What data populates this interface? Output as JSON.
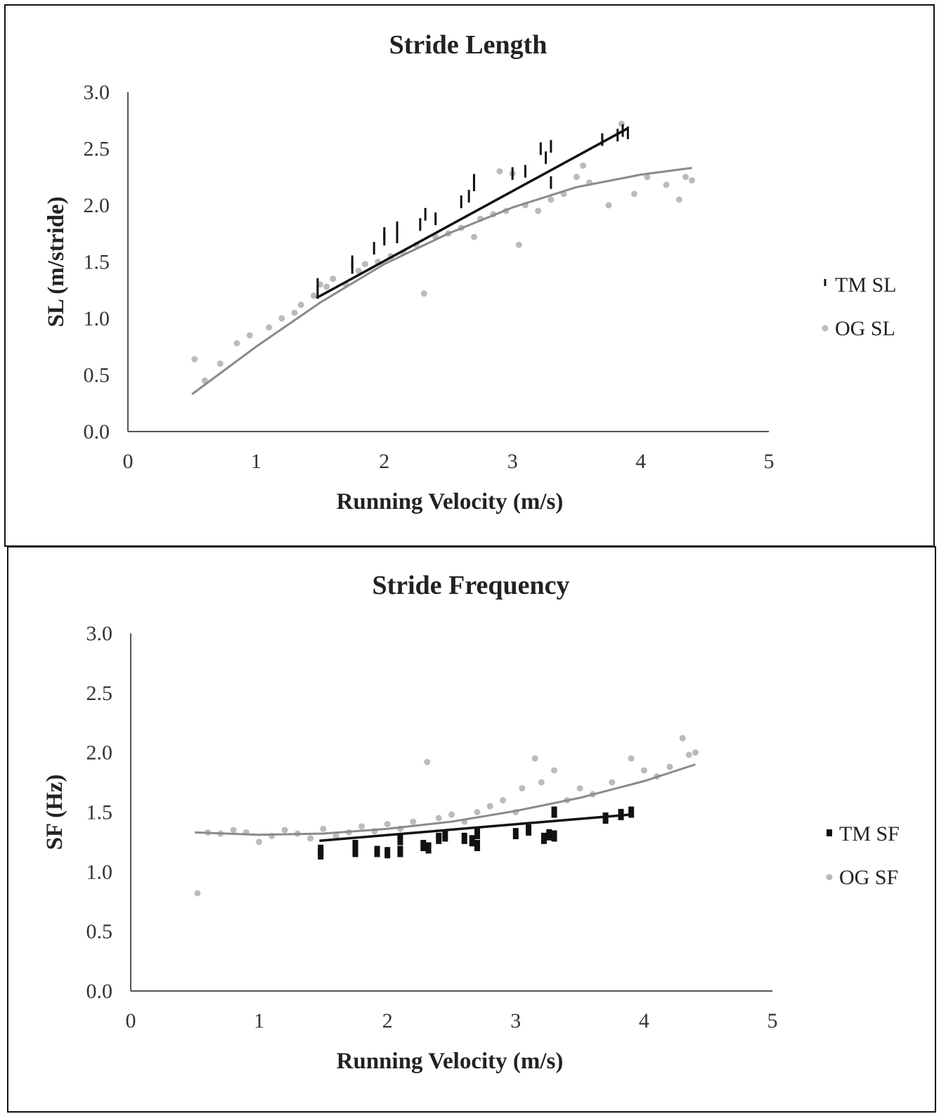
{
  "chart_data": [
    {
      "type": "scatter",
      "title": "Stride Length",
      "xlabel": "Running Velocity (m/s)",
      "ylabel": "SL (m/stride)",
      "xlim": [
        0,
        5
      ],
      "ylim": [
        0,
        3
      ],
      "x_ticks": [
        "0",
        "1",
        "2",
        "3",
        "4",
        "5"
      ],
      "y_ticks": [
        "0.0",
        "0.5",
        "1.0",
        "1.5",
        "2.0",
        "2.5",
        "3.0"
      ],
      "grid": false,
      "legend_position": "right",
      "series": [
        {
          "name": "TM SL",
          "color": "#111111",
          "marker": "dash",
          "points": [
            [
              1.48,
              1.23
            ],
            [
              1.48,
              1.3
            ],
            [
              1.75,
              1.45
            ],
            [
              1.75,
              1.5
            ],
            [
              1.92,
              1.62
            ],
            [
              2.0,
              1.7
            ],
            [
              2.0,
              1.75
            ],
            [
              2.1,
              1.72
            ],
            [
              2.1,
              1.8
            ],
            [
              2.28,
              1.83
            ],
            [
              2.32,
              1.92
            ],
            [
              2.4,
              1.88
            ],
            [
              2.6,
              2.03
            ],
            [
              2.66,
              2.08
            ],
            [
              2.7,
              2.18
            ],
            [
              2.7,
              2.22
            ],
            [
              3.0,
              2.28
            ],
            [
              3.1,
              2.3
            ],
            [
              3.22,
              2.5
            ],
            [
              3.26,
              2.42
            ],
            [
              3.3,
              2.52
            ],
            [
              3.3,
              2.2
            ],
            [
              3.7,
              2.58
            ],
            [
              3.82,
              2.62
            ],
            [
              3.86,
              2.66
            ],
            [
              3.9,
              2.64
            ]
          ],
          "fit": {
            "type": "linear",
            "x": [
              1.47,
              3.9
            ],
            "y": [
              1.18,
              2.68
            ]
          }
        },
        {
          "name": "OG SL",
          "color": "#bbbbbb",
          "marker": "circle",
          "points": [
            [
              0.52,
              0.64
            ],
            [
              0.6,
              0.45
            ],
            [
              0.72,
              0.6
            ],
            [
              0.85,
              0.78
            ],
            [
              0.95,
              0.85
            ],
            [
              1.1,
              0.92
            ],
            [
              1.2,
              1.0
            ],
            [
              1.3,
              1.05
            ],
            [
              1.35,
              1.12
            ],
            [
              1.45,
              1.2
            ],
            [
              1.5,
              1.3
            ],
            [
              1.55,
              1.28
            ],
            [
              1.6,
              1.35
            ],
            [
              1.7,
              1.3
            ],
            [
              1.8,
              1.42
            ],
            [
              1.85,
              1.48
            ],
            [
              1.95,
              1.5
            ],
            [
              2.05,
              1.55
            ],
            [
              2.15,
              1.58
            ],
            [
              2.25,
              1.65
            ],
            [
              2.31,
              1.22
            ],
            [
              2.4,
              1.72
            ],
            [
              2.5,
              1.75
            ],
            [
              2.6,
              1.8
            ],
            [
              2.7,
              1.72
            ],
            [
              2.75,
              1.88
            ],
            [
              2.85,
              1.92
            ],
            [
              2.9,
              2.3
            ],
            [
              2.95,
              1.95
            ],
            [
              3.0,
              2.28
            ],
            [
              3.05,
              1.65
            ],
            [
              3.1,
              2.0
            ],
            [
              3.2,
              1.95
            ],
            [
              3.3,
              2.05
            ],
            [
              3.4,
              2.1
            ],
            [
              3.5,
              2.25
            ],
            [
              3.55,
              2.35
            ],
            [
              3.6,
              2.2
            ],
            [
              3.75,
              2.0
            ],
            [
              3.85,
              2.72
            ],
            [
              3.95,
              2.1
            ],
            [
              4.05,
              2.25
            ],
            [
              4.2,
              2.18
            ],
            [
              4.3,
              2.05
            ],
            [
              4.35,
              2.25
            ],
            [
              4.4,
              2.22
            ]
          ],
          "fit": {
            "type": "polynomial",
            "x": [
              0.5,
              1.0,
              1.5,
              2.0,
              2.5,
              3.0,
              3.5,
              4.0,
              4.4
            ],
            "y": [
              0.33,
              0.75,
              1.14,
              1.48,
              1.75,
              1.98,
              2.16,
              2.27,
              2.33
            ]
          }
        }
      ]
    },
    {
      "type": "scatter",
      "title": "Stride Frequency",
      "xlabel": "Running Velocity (m/s)",
      "ylabel": "SF (Hz)",
      "xlim": [
        0,
        5
      ],
      "ylim": [
        0,
        3
      ],
      "x_ticks": [
        "0",
        "1",
        "2",
        "3",
        "4",
        "5"
      ],
      "y_ticks": [
        "0.0",
        "0.5",
        "1.0",
        "1.5",
        "2.0",
        "2.5",
        "3.0"
      ],
      "grid": false,
      "legend_position": "right",
      "series": [
        {
          "name": "TM SF",
          "color": "#111111",
          "marker": "square",
          "points": [
            [
              1.48,
              1.15
            ],
            [
              1.48,
              1.18
            ],
            [
              1.75,
              1.17
            ],
            [
              1.75,
              1.22
            ],
            [
              1.92,
              1.17
            ],
            [
              2.0,
              1.16
            ],
            [
              2.1,
              1.17
            ],
            [
              2.1,
              1.27
            ],
            [
              2.28,
              1.22
            ],
            [
              2.32,
              1.2
            ],
            [
              2.4,
              1.28
            ],
            [
              2.45,
              1.3
            ],
            [
              2.6,
              1.28
            ],
            [
              2.66,
              1.26
            ],
            [
              2.7,
              1.22
            ],
            [
              2.7,
              1.32
            ],
            [
              3.0,
              1.32
            ],
            [
              3.1,
              1.35
            ],
            [
              3.22,
              1.28
            ],
            [
              3.26,
              1.31
            ],
            [
              3.3,
              1.3
            ],
            [
              3.3,
              1.5
            ],
            [
              3.7,
              1.45
            ],
            [
              3.82,
              1.48
            ],
            [
              3.9,
              1.5
            ]
          ],
          "fit": {
            "type": "linear",
            "x": [
              1.47,
              3.9
            ],
            "y": [
              1.26,
              1.48
            ]
          }
        },
        {
          "name": "OG SF",
          "color": "#bbbbbb",
          "marker": "circle",
          "points": [
            [
              0.52,
              0.82
            ],
            [
              0.6,
              1.33
            ],
            [
              0.7,
              1.32
            ],
            [
              0.8,
              1.35
            ],
            [
              0.9,
              1.33
            ],
            [
              1.0,
              1.25
            ],
            [
              1.1,
              1.3
            ],
            [
              1.2,
              1.35
            ],
            [
              1.3,
              1.32
            ],
            [
              1.4,
              1.28
            ],
            [
              1.5,
              1.36
            ],
            [
              1.6,
              1.3
            ],
            [
              1.7,
              1.33
            ],
            [
              1.8,
              1.38
            ],
            [
              1.9,
              1.34
            ],
            [
              2.0,
              1.4
            ],
            [
              2.1,
              1.36
            ],
            [
              2.2,
              1.42
            ],
            [
              2.31,
              1.92
            ],
            [
              2.4,
              1.45
            ],
            [
              2.5,
              1.48
            ],
            [
              2.6,
              1.42
            ],
            [
              2.7,
              1.5
            ],
            [
              2.8,
              1.55
            ],
            [
              2.9,
              1.6
            ],
            [
              3.0,
              1.5
            ],
            [
              3.05,
              1.7
            ],
            [
              3.15,
              1.95
            ],
            [
              3.2,
              1.75
            ],
            [
              3.3,
              1.85
            ],
            [
              3.4,
              1.6
            ],
            [
              3.5,
              1.7
            ],
            [
              3.6,
              1.65
            ],
            [
              3.75,
              1.75
            ],
            [
              3.9,
              1.95
            ],
            [
              4.0,
              1.85
            ],
            [
              4.1,
              1.8
            ],
            [
              4.2,
              1.88
            ],
            [
              4.3,
              2.12
            ],
            [
              4.35,
              1.98
            ],
            [
              4.4,
              2.0
            ]
          ],
          "fit": {
            "type": "polynomial",
            "x": [
              0.5,
              1.0,
              1.5,
              2.0,
              2.5,
              3.0,
              3.5,
              4.0,
              4.4
            ],
            "y": [
              1.33,
              1.31,
              1.32,
              1.36,
              1.42,
              1.51,
              1.62,
              1.76,
              1.9
            ]
          }
        }
      ]
    }
  ]
}
